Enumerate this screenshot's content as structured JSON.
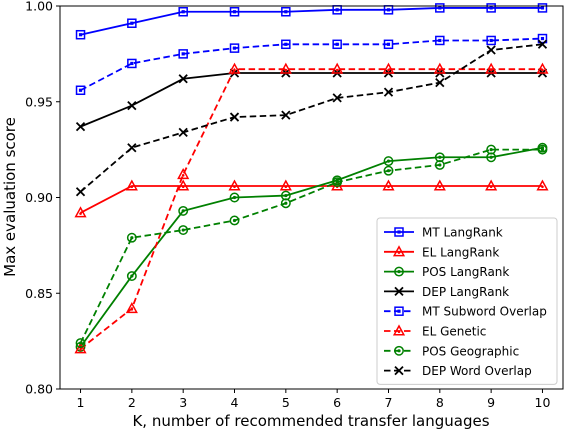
{
  "chart_data": {
    "type": "line",
    "xlabel": "K, number of recommended transfer languages",
    "ylabel": "Max evaluation score",
    "x": [
      1,
      2,
      3,
      4,
      5,
      6,
      7,
      8,
      9,
      10
    ],
    "xlim": [
      0.6,
      10.4
    ],
    "ylim": [
      0.8,
      1.0
    ],
    "xticks": [
      "1",
      "2",
      "3",
      "4",
      "5",
      "6",
      "7",
      "8",
      "9",
      "10"
    ],
    "yticks": [
      "0.80",
      "0.85",
      "0.90",
      "0.95",
      "1.00"
    ],
    "grid": false,
    "legend_position": "bottom-right",
    "series": [
      {
        "name": "MT LangRank",
        "color": "#0000ff",
        "dash": "solid",
        "marker": "square",
        "values": [
          0.985,
          0.991,
          0.997,
          0.997,
          0.997,
          0.998,
          0.998,
          0.999,
          0.999,
          0.999
        ]
      },
      {
        "name": "EL LangRank",
        "color": "#ff0000",
        "dash": "solid",
        "marker": "triangle",
        "values": [
          0.892,
          0.906,
          0.906,
          0.906,
          0.906,
          0.906,
          0.906,
          0.906,
          0.906,
          0.906
        ]
      },
      {
        "name": "POS LangRank",
        "color": "#008000",
        "dash": "solid",
        "marker": "circle",
        "values": [
          0.822,
          0.859,
          0.893,
          0.9,
          0.901,
          0.909,
          0.919,
          0.921,
          0.921,
          0.926
        ]
      },
      {
        "name": "DEP LangRank",
        "color": "#000000",
        "dash": "solid",
        "marker": "x",
        "values": [
          0.937,
          0.948,
          0.962,
          0.965,
          0.965,
          0.965,
          0.965,
          0.965,
          0.965,
          0.965
        ]
      },
      {
        "name": "MT Subword Overlap",
        "color": "#0000ff",
        "dash": "dashed",
        "marker": "square",
        "values": [
          0.956,
          0.97,
          0.975,
          0.978,
          0.98,
          0.98,
          0.98,
          0.982,
          0.982,
          0.983
        ]
      },
      {
        "name": "EL Genetic",
        "color": "#ff0000",
        "dash": "dashed",
        "marker": "triangle",
        "values": [
          0.821,
          0.842,
          0.912,
          0.967,
          0.967,
          0.967,
          0.967,
          0.967,
          0.967,
          0.967
        ]
      },
      {
        "name": "POS Geographic",
        "color": "#008000",
        "dash": "dashed",
        "marker": "circle",
        "values": [
          0.824,
          0.879,
          0.883,
          0.888,
          0.897,
          0.908,
          0.914,
          0.917,
          0.925,
          0.925
        ]
      },
      {
        "name": "DEP Word Overlap",
        "color": "#000000",
        "dash": "dashed",
        "marker": "x",
        "values": [
          0.903,
          0.926,
          0.934,
          0.942,
          0.943,
          0.952,
          0.955,
          0.96,
          0.977,
          0.98
        ]
      }
    ]
  }
}
